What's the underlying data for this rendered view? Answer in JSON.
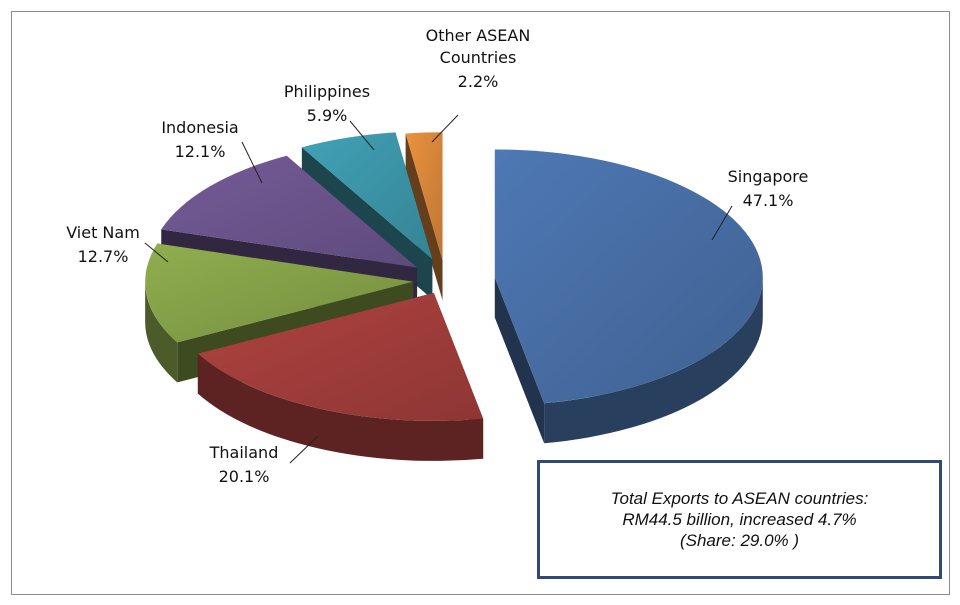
{
  "chart_data": {
    "type": "pie",
    "title": "",
    "slices": [
      {
        "label": "Singapore",
        "value": 47.1,
        "value_label": "47.1%",
        "color": "#4a72ab"
      },
      {
        "label": "Thailand",
        "value": 20.1,
        "value_label": "20.1%",
        "color": "#a7403d"
      },
      {
        "label": "Viet Nam",
        "value": 12.7,
        "value_label": "12.7%",
        "color": "#89a64a"
      },
      {
        "label": "Indonesia",
        "value": 12.1,
        "value_label": "12.1%",
        "color": "#6f5791"
      },
      {
        "label": "Philippines",
        "value": 5.9,
        "value_label": "5.9%",
        "color": "#3e9aae"
      },
      {
        "label": "Other ASEAN\nCountries",
        "value": 2.2,
        "value_label": "2.2%",
        "color": "#e08b3c"
      }
    ],
    "style": "3d-exploded"
  },
  "note": {
    "line1": "Total Exports to ASEAN countries:",
    "line2": "RM44.5  billion, increased 4.7%",
    "line3": "(Share: 29.0% )"
  }
}
